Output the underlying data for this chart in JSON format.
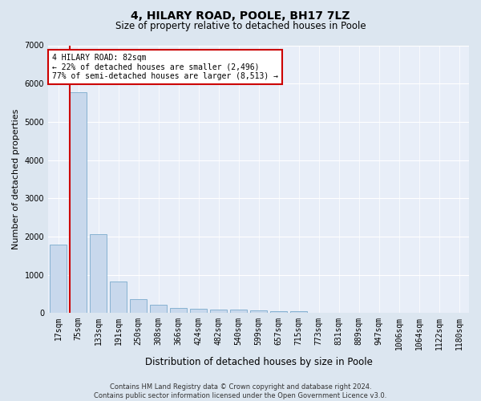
{
  "title": "4, HILARY ROAD, POOLE, BH17 7LZ",
  "subtitle": "Size of property relative to detached houses in Poole",
  "xlabel": "Distribution of detached houses by size in Poole",
  "ylabel": "Number of detached properties",
  "footer_line1": "Contains HM Land Registry data © Crown copyright and database right 2024.",
  "footer_line2": "Contains public sector information licensed under the Open Government Licence v3.0.",
  "categories": [
    "17sqm",
    "75sqm",
    "133sqm",
    "191sqm",
    "250sqm",
    "308sqm",
    "366sqm",
    "424sqm",
    "482sqm",
    "540sqm",
    "599sqm",
    "657sqm",
    "715sqm",
    "773sqm",
    "831sqm",
    "889sqm",
    "947sqm",
    "1006sqm",
    "1064sqm",
    "1122sqm",
    "1180sqm"
  ],
  "values": [
    1780,
    5780,
    2060,
    820,
    360,
    210,
    120,
    105,
    95,
    80,
    60,
    50,
    40,
    0,
    0,
    0,
    0,
    0,
    0,
    0,
    0
  ],
  "bar_color": "#c8d8ec",
  "bar_edge_color": "#7aabcc",
  "vline_color": "#cc0000",
  "vline_x_index": 1,
  "annotation_text": "4 HILARY ROAD: 82sqm\n← 22% of detached houses are smaller (2,496)\n77% of semi-detached houses are larger (8,513) →",
  "annotation_box_facecolor": "#ffffff",
  "annotation_box_edgecolor": "#cc0000",
  "ylim": [
    0,
    7000
  ],
  "yticks": [
    0,
    1000,
    2000,
    3000,
    4000,
    5000,
    6000,
    7000
  ],
  "background_color": "#dce6f0",
  "plot_bg_color": "#e8eef8",
  "title_fontsize": 10,
  "subtitle_fontsize": 8.5,
  "ylabel_fontsize": 8,
  "xlabel_fontsize": 8.5,
  "tick_fontsize": 7,
  "footer_fontsize": 6,
  "annotation_fontsize": 7
}
